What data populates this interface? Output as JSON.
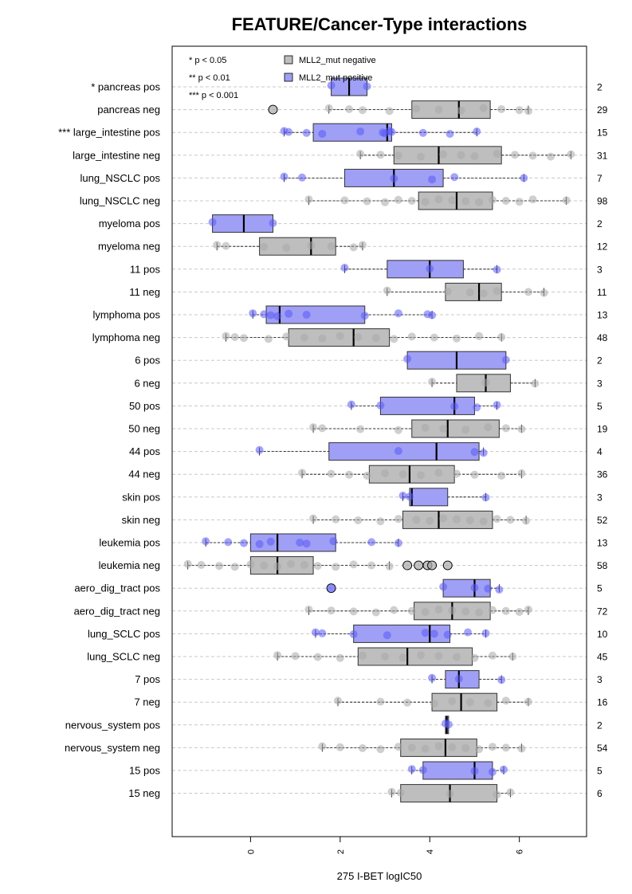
{
  "chart_data": {
    "type": "boxplot",
    "title": "FEATURE/Cancer-Type interactions",
    "xlabel": "275 I-BET logIC50",
    "ylabel": "",
    "xlim": [
      -1.75,
      7.5
    ],
    "xticks": [
      0,
      2,
      4,
      6
    ],
    "grid": "horizontal dashed",
    "legend": {
      "placement": "top-left",
      "significance": [
        "* p < 0.05",
        "** p < 0.01",
        "*** p < 0.001"
      ],
      "entries": [
        {
          "label": "MLL2_mut negative",
          "color": "#bebebe"
        },
        {
          "label": "MLL2_mut positive",
          "color": "#9f9ff5"
        }
      ]
    },
    "colors": {
      "negative_fill": "#bebebe",
      "positive_fill": "#9f9ff5",
      "negative_point": "#a8a8a8",
      "positive_point": "#5a5af5",
      "grid": "#c8c8c8"
    },
    "rows": [
      {
        "label": "* pancreas pos",
        "group": "pos",
        "n": "2",
        "q1": 1.8,
        "median": 2.2,
        "q3": 2.6,
        "wlo": 1.8,
        "whi": 2.6,
        "points": [
          1.8,
          2.6
        ]
      },
      {
        "label": "pancreas neg",
        "group": "neg",
        "n": "29",
        "q1": 3.6,
        "median": 4.65,
        "q3": 5.35,
        "wlo": 1.75,
        "whi": 6.2,
        "points": [
          1.75,
          2.2,
          2.5,
          3.1,
          3.7,
          4.2,
          4.7,
          5.2,
          5.6,
          6.0,
          6.2
        ],
        "outliers": [
          0.5
        ]
      },
      {
        "label": "*** large_intestine pos",
        "group": "pos",
        "n": "15",
        "q1": 1.4,
        "median": 3.05,
        "q3": 3.15,
        "wlo": 0.75,
        "whi": 5.05,
        "points": [
          0.75,
          0.85,
          1.25,
          1.6,
          2.45,
          2.95,
          3.0,
          3.1,
          3.15,
          3.85,
          4.45,
          5.05
        ]
      },
      {
        "label": "large_intestine neg",
        "group": "neg",
        "n": "31",
        "q1": 3.2,
        "median": 4.2,
        "q3": 5.6,
        "wlo": 2.45,
        "whi": 7.15,
        "points": [
          2.45,
          2.9,
          3.3,
          3.8,
          4.3,
          4.7,
          5.0,
          5.5,
          5.9,
          6.3,
          6.7,
          7.15
        ]
      },
      {
        "label": "lung_NSCLC pos",
        "group": "pos",
        "n": "7",
        "q1": 2.1,
        "median": 3.2,
        "q3": 4.3,
        "wlo": 0.75,
        "whi": 6.1,
        "points": [
          0.75,
          1.15,
          3.2,
          4.05,
          4.55,
          6.1
        ]
      },
      {
        "label": "lung_NSCLC neg",
        "group": "neg",
        "n": "98",
        "q1": 3.75,
        "median": 4.6,
        "q3": 5.4,
        "wlo": 1.3,
        "whi": 7.05,
        "points": [
          1.3,
          2.1,
          2.6,
          3.0,
          3.3,
          3.6,
          3.9,
          4.2,
          4.5,
          4.8,
          5.1,
          5.4,
          5.7,
          6.0,
          6.3,
          7.05
        ]
      },
      {
        "label": "myeloma pos",
        "group": "pos",
        "n": "2",
        "q1": -0.85,
        "median": -0.15,
        "q3": 0.5,
        "wlo": -0.85,
        "whi": 0.5,
        "points": [
          -0.85,
          0.5
        ]
      },
      {
        "label": "myeloma neg",
        "group": "neg",
        "n": "12",
        "q1": 0.2,
        "median": 1.35,
        "q3": 1.9,
        "wlo": -0.75,
        "whi": 2.5,
        "points": [
          -0.75,
          -0.55,
          0.3,
          0.8,
          1.35,
          1.8,
          2.3,
          2.5
        ]
      },
      {
        "label": "11 pos",
        "group": "pos",
        "n": "3",
        "q1": 3.05,
        "median": 4.0,
        "q3": 4.75,
        "wlo": 2.1,
        "whi": 5.5,
        "points": [
          2.1,
          4.0,
          5.5
        ]
      },
      {
        "label": "11 neg",
        "group": "neg",
        "n": "11",
        "q1": 4.35,
        "median": 5.1,
        "q3": 5.6,
        "wlo": 3.05,
        "whi": 6.55,
        "points": [
          3.05,
          4.4,
          4.9,
          5.2,
          5.5,
          6.2,
          6.55
        ]
      },
      {
        "label": "lymphoma pos",
        "group": "pos",
        "n": "13",
        "q1": 0.35,
        "median": 0.65,
        "q3": 2.55,
        "wlo": 0.05,
        "whi": 4.05,
        "points": [
          0.05,
          0.3,
          0.45,
          0.6,
          0.85,
          1.25,
          2.55,
          3.3,
          3.95,
          4.05
        ]
      },
      {
        "label": "lymphoma neg",
        "group": "neg",
        "n": "48",
        "q1": 0.85,
        "median": 2.3,
        "q3": 3.1,
        "wlo": -0.55,
        "whi": 5.6,
        "points": [
          -0.55,
          -0.35,
          -0.15,
          0.4,
          0.8,
          1.2,
          1.6,
          2.0,
          2.4,
          2.8,
          3.2,
          3.6,
          4.1,
          4.6,
          5.1,
          5.6
        ]
      },
      {
        "label": "6 pos",
        "group": "pos",
        "n": "2",
        "q1": 3.5,
        "median": 4.6,
        "q3": 5.7,
        "wlo": 3.5,
        "whi": 5.7,
        "points": [
          3.5,
          5.7
        ]
      },
      {
        "label": "6 neg",
        "group": "neg",
        "n": "3",
        "q1": 4.6,
        "median": 5.25,
        "q3": 5.8,
        "wlo": 4.05,
        "whi": 6.35,
        "points": [
          4.05,
          5.25,
          6.35
        ]
      },
      {
        "label": "50 pos",
        "group": "pos",
        "n": "5",
        "q1": 2.9,
        "median": 4.55,
        "q3": 5.0,
        "wlo": 2.25,
        "whi": 5.5,
        "points": [
          2.25,
          2.9,
          4.55,
          5.05,
          5.5
        ]
      },
      {
        "label": "50 neg",
        "group": "neg",
        "n": "19",
        "q1": 3.6,
        "median": 4.4,
        "q3": 5.55,
        "wlo": 1.4,
        "whi": 6.05,
        "points": [
          1.4,
          1.6,
          2.45,
          3.3,
          3.9,
          4.3,
          4.8,
          5.3,
          5.7,
          6.05
        ]
      },
      {
        "label": "44 pos",
        "group": "pos",
        "n": "4",
        "q1": 1.75,
        "median": 4.15,
        "q3": 5.1,
        "wlo": 0.2,
        "whi": 5.2,
        "points": [
          0.2,
          3.3,
          5.0,
          5.2
        ]
      },
      {
        "label": "44 neg",
        "group": "neg",
        "n": "36",
        "q1": 2.65,
        "median": 3.55,
        "q3": 4.55,
        "wlo": 1.15,
        "whi": 6.05,
        "points": [
          1.15,
          1.8,
          2.2,
          2.6,
          3.0,
          3.4,
          3.8,
          4.2,
          4.6,
          5.0,
          5.6,
          6.05
        ]
      },
      {
        "label": "skin pos",
        "group": "pos",
        "n": "3",
        "q1": 3.55,
        "median": 3.6,
        "q3": 4.4,
        "wlo": 3.4,
        "whi": 5.25,
        "points": [
          3.4,
          3.55,
          5.25
        ]
      },
      {
        "label": "skin neg",
        "group": "neg",
        "n": "52",
        "q1": 3.4,
        "median": 4.2,
        "q3": 5.4,
        "wlo": 1.4,
        "whi": 6.15,
        "points": [
          1.4,
          1.9,
          2.4,
          2.9,
          3.3,
          3.7,
          4.0,
          4.3,
          4.6,
          4.9,
          5.2,
          5.5,
          5.8,
          6.15
        ]
      },
      {
        "label": "leukemia pos",
        "group": "pos",
        "n": "13",
        "q1": 0.0,
        "median": 0.6,
        "q3": 1.9,
        "wlo": -1.0,
        "whi": 3.3,
        "points": [
          -1.0,
          -0.5,
          -0.15,
          0.2,
          0.45,
          1.1,
          1.25,
          1.85,
          2.7,
          3.3
        ]
      },
      {
        "label": "leukemia neg",
        "group": "neg",
        "n": "58",
        "q1": 0.0,
        "median": 0.6,
        "q3": 1.4,
        "wlo": -1.4,
        "whi": 3.1,
        "points": [
          -1.4,
          -1.1,
          -0.7,
          -0.35,
          0.0,
          0.3,
          0.6,
          0.9,
          1.2,
          1.5,
          1.9,
          2.3,
          2.7,
          3.1
        ],
        "outliers": [
          3.5,
          3.75,
          3.95,
          4.05,
          4.4
        ]
      },
      {
        "label": "aero_dig_tract pos",
        "group": "pos",
        "n": "5",
        "q1": 4.3,
        "median": 5.0,
        "q3": 5.35,
        "wlo": 4.3,
        "whi": 5.55,
        "points": [
          4.3,
          5.0,
          5.3,
          5.55
        ],
        "outliers": [
          1.8
        ]
      },
      {
        "label": "aero_dig_tract neg",
        "group": "neg",
        "n": "72",
        "q1": 3.65,
        "median": 4.5,
        "q3": 5.35,
        "wlo": 1.3,
        "whi": 6.2,
        "points": [
          1.3,
          1.8,
          2.3,
          2.8,
          3.2,
          3.6,
          3.9,
          4.2,
          4.5,
          4.8,
          5.1,
          5.4,
          5.7,
          6.0,
          6.2
        ]
      },
      {
        "label": "lung_SCLC pos",
        "group": "pos",
        "n": "10",
        "q1": 2.3,
        "median": 4.0,
        "q3": 4.45,
        "wlo": 1.45,
        "whi": 5.25,
        "points": [
          1.45,
          1.6,
          2.3,
          3.05,
          3.9,
          4.1,
          4.4,
          4.85,
          5.25
        ]
      },
      {
        "label": "lung_SCLC neg",
        "group": "neg",
        "n": "45",
        "q1": 2.4,
        "median": 3.5,
        "q3": 4.95,
        "wlo": 0.6,
        "whi": 5.85,
        "points": [
          0.6,
          1.0,
          1.5,
          2.0,
          2.5,
          3.0,
          3.4,
          3.8,
          4.2,
          4.6,
          5.0,
          5.4,
          5.85
        ]
      },
      {
        "label": "7 pos",
        "group": "pos",
        "n": "3",
        "q1": 4.35,
        "median": 4.65,
        "q3": 5.1,
        "wlo": 4.05,
        "whi": 5.6,
        "points": [
          4.05,
          4.65,
          5.6
        ]
      },
      {
        "label": "7 neg",
        "group": "neg",
        "n": "16",
        "q1": 4.05,
        "median": 4.7,
        "q3": 5.5,
        "wlo": 1.95,
        "whi": 6.2,
        "points": [
          1.95,
          2.9,
          3.5,
          4.1,
          4.5,
          4.9,
          5.3,
          5.7,
          6.2
        ]
      },
      {
        "label": "nervous_system pos",
        "group": "pos",
        "n": "2",
        "q1": 4.35,
        "median": 4.38,
        "q3": 4.42,
        "wlo": 4.35,
        "whi": 4.42,
        "points": [
          4.35,
          4.42
        ]
      },
      {
        "label": "nervous_system neg",
        "group": "neg",
        "n": "54",
        "q1": 3.35,
        "median": 4.35,
        "q3": 5.05,
        "wlo": 1.6,
        "whi": 6.05,
        "points": [
          1.6,
          2.0,
          2.5,
          2.9,
          3.3,
          3.6,
          3.9,
          4.2,
          4.5,
          4.8,
          5.1,
          5.4,
          5.7,
          6.05
        ]
      },
      {
        "label": "15 pos",
        "group": "pos",
        "n": "5",
        "q1": 3.85,
        "median": 5.0,
        "q3": 5.4,
        "wlo": 3.6,
        "whi": 5.65,
        "points": [
          3.6,
          3.85,
          5.0,
          5.4,
          5.65
        ]
      },
      {
        "label": "15 neg",
        "group": "neg",
        "n": "6",
        "q1": 3.35,
        "median": 4.45,
        "q3": 5.5,
        "wlo": 3.15,
        "whi": 5.8,
        "points": [
          3.15,
          3.35,
          4.45,
          5.5,
          5.8
        ]
      }
    ]
  }
}
